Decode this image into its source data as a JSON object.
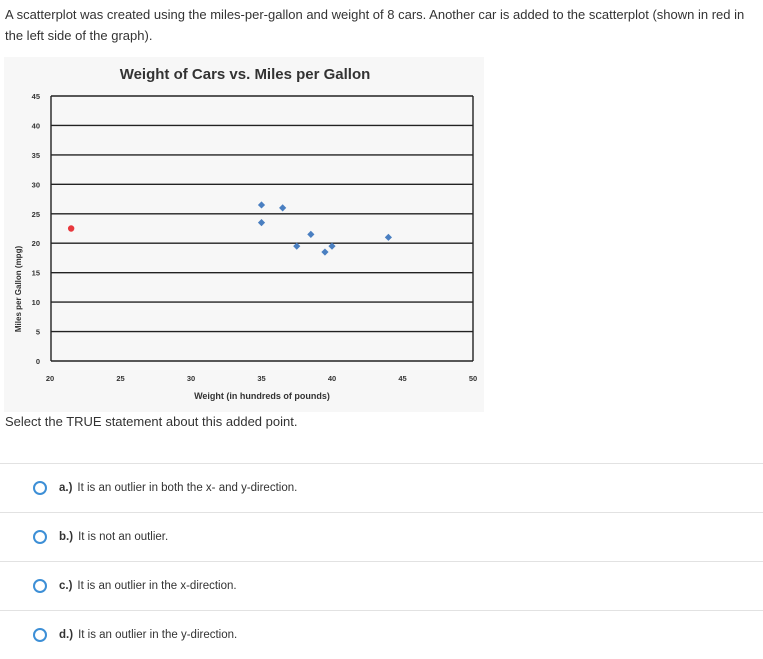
{
  "question": "A scatterplot was created using the miles-per-gallon and weight of 8 cars. Another car is added to the scatterplot (shown in red in the left side of the graph).",
  "prompt": "Select the TRUE statement about this added point.",
  "options": [
    {
      "letter": "a.)",
      "text": "It is an outlier in both the x- and y-direction."
    },
    {
      "letter": "b.)",
      "text": "It is not an outlier."
    },
    {
      "letter": "c.)",
      "text": "It is an outlier in the x-direction."
    },
    {
      "letter": "d.)",
      "text": "It is an outlier in the y-direction."
    }
  ],
  "colors": {
    "series": "#4a7fc1",
    "added_point": "#e8383d",
    "radio": "#3d8fd6"
  },
  "chart_data": {
    "type": "scatter",
    "title": "Weight of Cars vs. Miles per Gallon",
    "xlabel": "Weight (in hundreds of pounds)",
    "ylabel": "Miles per Gallon (mpg)",
    "xlim": [
      20,
      50
    ],
    "ylim": [
      0,
      45
    ],
    "xticks": [
      20,
      25,
      30,
      35,
      40,
      45,
      50
    ],
    "yticks": [
      0,
      5,
      10,
      15,
      20,
      25,
      30,
      35,
      40,
      45
    ],
    "grid": "horizontal",
    "series": [
      {
        "points": [
          {
            "x": 35,
            "y": 26.5
          },
          {
            "x": 35,
            "y": 23.5
          },
          {
            "x": 36.5,
            "y": 26
          },
          {
            "x": 37.5,
            "y": 19.5
          },
          {
            "x": 38.5,
            "y": 21.5
          },
          {
            "x": 39.5,
            "y": 18.5
          },
          {
            "x": 40,
            "y": 19.5
          },
          {
            "x": 44,
            "y": 21
          }
        ]
      },
      {
        "points": [
          {
            "x": 21.5,
            "y": 22.5
          }
        ]
      }
    ]
  }
}
